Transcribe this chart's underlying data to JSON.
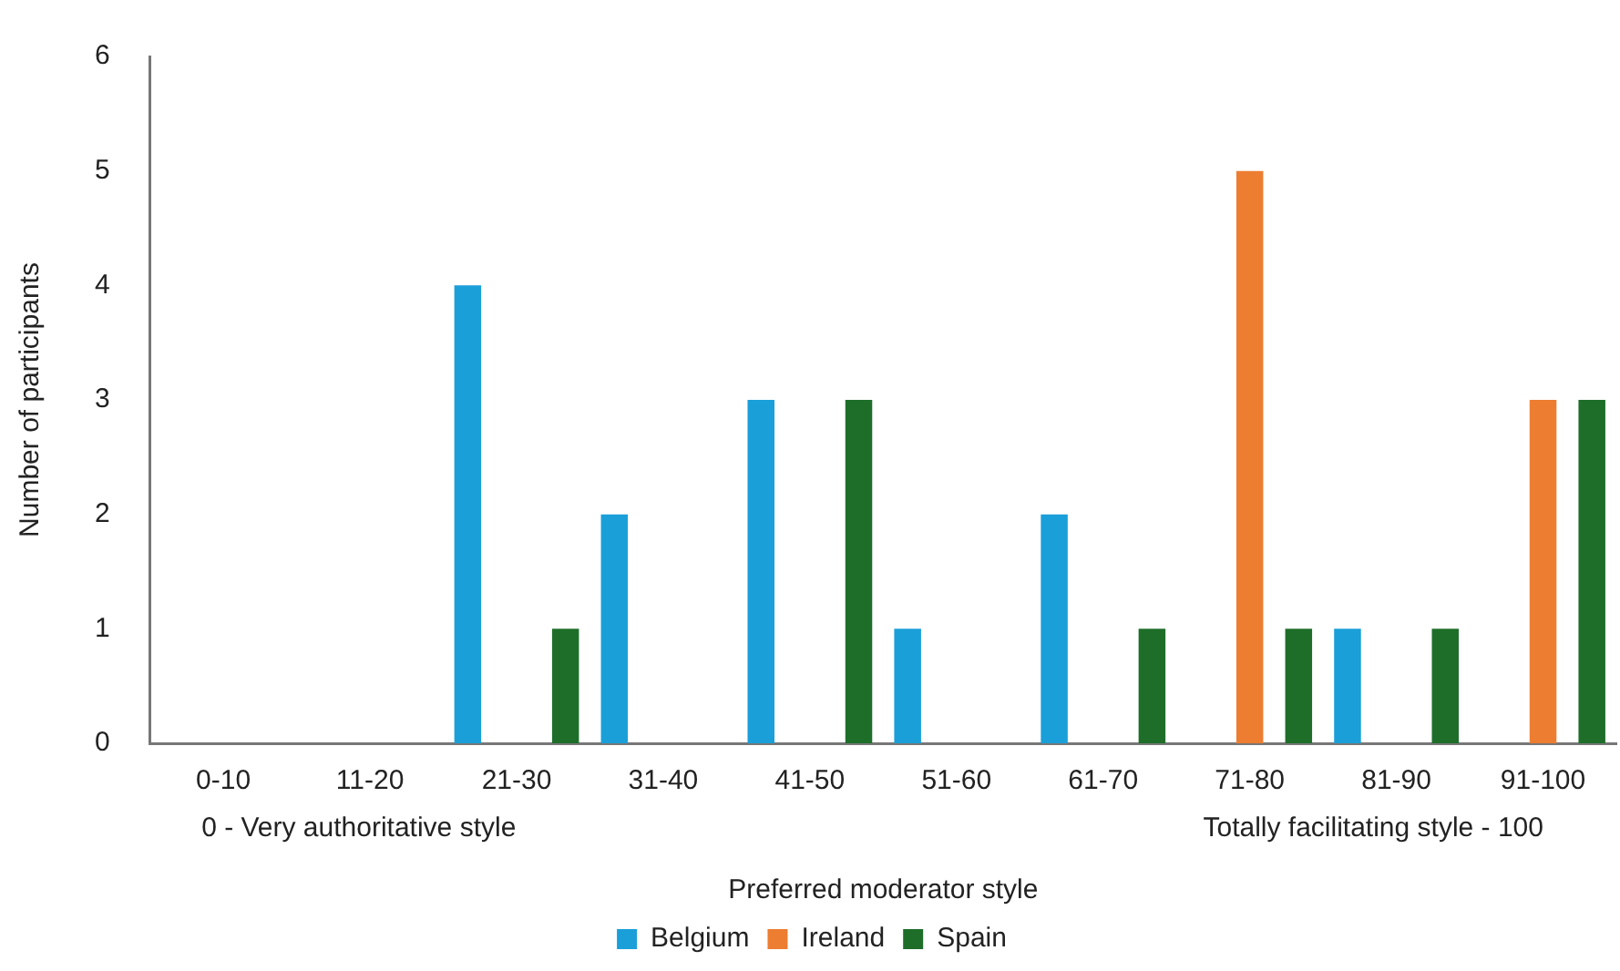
{
  "chart_data": {
    "type": "bar",
    "xlabel": "Preferred moderator style",
    "ylabel": "Number of participants",
    "categories": [
      "0-10",
      "11-20",
      "21-30",
      "31-40",
      "41-50",
      "51-60",
      "61-70",
      "71-80",
      "81-90",
      "91-100"
    ],
    "series": [
      {
        "name": "Belgium",
        "color": "#1a9fd9",
        "values": [
          0,
          0,
          4,
          2,
          3,
          1,
          2,
          0,
          1,
          0
        ]
      },
      {
        "name": "Ireland",
        "color": "#ed7d31",
        "values": [
          0,
          0,
          0,
          0,
          0,
          0,
          0,
          5,
          0,
          3
        ]
      },
      {
        "name": "Spain",
        "color": "#1e6e2a",
        "values": [
          0,
          0,
          1,
          0,
          3,
          0,
          1,
          1,
          1,
          3
        ]
      }
    ],
    "annotations": [
      "0 - Very authoritative style",
      "Totally facilitating style - 100"
    ],
    "ylim": [
      0,
      6
    ],
    "yticks": [
      0,
      1,
      2,
      3,
      4,
      5,
      6
    ],
    "grid": false,
    "legend": "bottom"
  }
}
